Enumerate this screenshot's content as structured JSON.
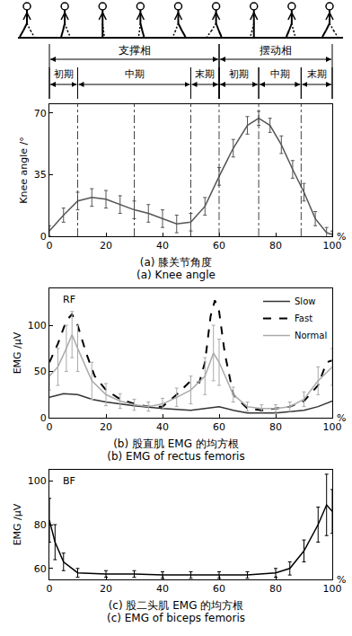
{
  "gait_phases": {
    "phases": [
      {
        "label": "支撑相",
        "start": 0,
        "end": 60
      },
      {
        "label": "摆动相",
        "start": 60,
        "end": 100
      }
    ],
    "subphases": [
      {
        "label": "初期",
        "start": 0,
        "end": 10
      },
      {
        "label": "中期",
        "start": 10,
        "end": 50
      },
      {
        "label": "末期",
        "start": 50,
        "end": 60
      },
      {
        "label": "初期",
        "start": 60,
        "end": 74
      },
      {
        "label": "中期",
        "start": 74,
        "end": 89
      },
      {
        "label": "末期",
        "start": 89,
        "end": 100
      }
    ]
  },
  "chart_data": [
    {
      "type": "line",
      "caption": [
        "(a) 膝关节角度",
        "(a) Knee angle"
      ],
      "xlabel": "%",
      "ylabel": "Knee angle /°",
      "xlim": [
        0,
        100
      ],
      "xticks": [
        0,
        20,
        40,
        60,
        80,
        100
      ],
      "ylim": [
        0,
        75
      ],
      "yticks": [
        0,
        35,
        70
      ],
      "grid": false,
      "vlines": [
        10,
        30,
        50,
        60,
        74,
        89
      ],
      "series": [
        {
          "name": "Knee angle",
          "color": "#555555",
          "line_style": "solid",
          "x": [
            0,
            5,
            10,
            15,
            20,
            25,
            30,
            35,
            40,
            45,
            50,
            55,
            60,
            65,
            70,
            74,
            78,
            82,
            86,
            90,
            94,
            98,
            100
          ],
          "values": [
            3,
            12,
            20,
            22,
            21,
            18,
            15,
            13,
            10,
            7,
            8,
            17,
            34,
            50,
            63,
            67,
            63,
            52,
            38,
            25,
            10,
            2,
            1
          ],
          "errors": [
            3,
            4,
            5,
            5,
            5,
            5,
            5,
            5,
            5,
            5,
            5,
            5,
            5,
            5,
            5,
            4,
            4,
            5,
            5,
            5,
            4,
            3,
            2
          ]
        }
      ]
    },
    {
      "type": "line",
      "caption": [
        "(b) 股直肌 EMG 的均方根",
        "(b) EMG of rectus femoris"
      ],
      "annotations": [
        {
          "text": "RF"
        }
      ],
      "xlabel": "%",
      "ylabel": "EMG /μV",
      "xlim": [
        0,
        100
      ],
      "xticks": [
        0,
        20,
        40,
        60,
        80,
        100
      ],
      "ylim": [
        0,
        140
      ],
      "yticks": [
        0,
        50,
        100
      ],
      "grid": false,
      "legend": "upper right",
      "series": [
        {
          "name": "Slow",
          "color": "#333333",
          "line_style": "solid",
          "x": [
            0,
            5,
            10,
            15,
            20,
            25,
            30,
            40,
            50,
            55,
            60,
            65,
            70,
            80,
            90,
            95,
            100
          ],
          "values": [
            22,
            26,
            25,
            20,
            17,
            15,
            13,
            10,
            8,
            10,
            12,
            8,
            5,
            5,
            8,
            12,
            18
          ]
        },
        {
          "name": "Fast",
          "color": "#000000",
          "line_style": "dashed",
          "x": [
            0,
            3,
            6,
            8,
            10,
            13,
            16,
            20,
            25,
            30,
            35,
            40,
            45,
            50,
            53,
            55,
            57,
            58.5,
            60,
            62,
            65,
            70,
            75,
            80,
            85,
            90,
            95,
            98,
            100
          ],
          "values": [
            60,
            80,
            105,
            112,
            100,
            70,
            45,
            30,
            20,
            15,
            12,
            12,
            25,
            40,
            38,
            60,
            110,
            127,
            115,
            70,
            25,
            10,
            8,
            10,
            12,
            18,
            35,
            60,
            62
          ]
        },
        {
          "name": "Normal",
          "color": "#aaaaaa",
          "line_style": "solid",
          "x": [
            0,
            3,
            6,
            8,
            10,
            15,
            20,
            25,
            30,
            35,
            40,
            45,
            50,
            55,
            58,
            60,
            65,
            70,
            75,
            80,
            85,
            90,
            95,
            100
          ],
          "values": [
            45,
            55,
            75,
            90,
            75,
            40,
            25,
            18,
            14,
            12,
            15,
            22,
            30,
            45,
            70,
            60,
            25,
            12,
            10,
            10,
            12,
            20,
            40,
            55
          ],
          "errors": [
            15,
            20,
            25,
            25,
            25,
            20,
            12,
            8,
            6,
            5,
            6,
            10,
            15,
            20,
            30,
            25,
            8,
            5,
            4,
            4,
            5,
            8,
            15,
            20
          ]
        }
      ]
    },
    {
      "type": "line",
      "caption": [
        "(c) 股二头肌 EMG 的均方根",
        "(c) EMG of biceps femoris"
      ],
      "annotations": [
        {
          "text": "BF"
        }
      ],
      "xlabel": "%",
      "ylabel": "EMG /μV",
      "xlim": [
        0,
        100
      ],
      "xticks": [
        0,
        20,
        40,
        60,
        80,
        100
      ],
      "ylim": [
        55,
        105
      ],
      "yticks": [
        60,
        80,
        100
      ],
      "grid": false,
      "series": [
        {
          "name": "BF",
          "color": "#000000",
          "line_style": "solid",
          "x": [
            0,
            2,
            5,
            10,
            20,
            30,
            40,
            50,
            60,
            70,
            80,
            85,
            90,
            95,
            98,
            100
          ],
          "values": [
            82,
            72,
            63,
            58,
            57.5,
            57.5,
            57,
            57,
            57,
            57,
            58,
            60,
            68,
            80,
            89,
            86
          ],
          "errors": [
            10,
            8,
            4,
            2,
            1.5,
            1.5,
            1.5,
            1.5,
            1.5,
            1.5,
            2,
            3,
            5,
            8,
            14,
            10
          ]
        }
      ]
    }
  ]
}
